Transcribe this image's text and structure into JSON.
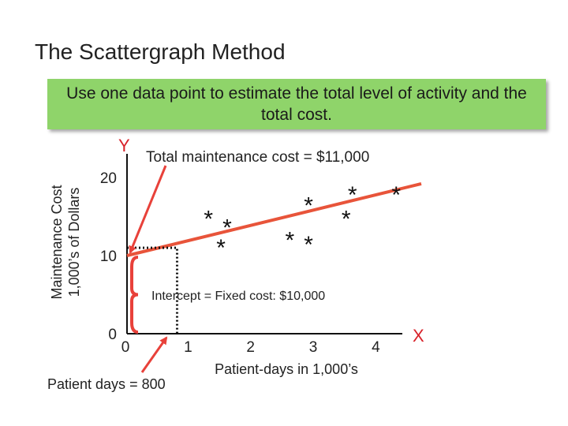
{
  "slide": {
    "title": "The Scattergraph Method",
    "callout": "Use one data point to estimate the total level of activity and the total cost."
  },
  "annotations": {
    "total_cost": "Total maintenance cost = $11,000",
    "intercept": "Intercept = Fixed cost: $10,000",
    "patient_days": "Patient days = 800"
  },
  "colors": {
    "callout_bg": "#8fd46a",
    "line": "#e8543a",
    "arrow": "#e8413a",
    "axis_letters": "#d8222a"
  },
  "chart_data": {
    "type": "scatter",
    "x_axis_letter": "X",
    "y_axis_letter": "Y",
    "xlabel": "Patient-days in 1,000’s",
    "ylabel": [
      "Maintenance Cost",
      "1,000’s of Dollars"
    ],
    "xlim": [
      0,
      4.65
    ],
    "ylim": [
      0,
      20
    ],
    "x_ticks": [
      {
        "value": 0,
        "label": "0"
      },
      {
        "value": 1,
        "label": "1"
      },
      {
        "value": 2,
        "label": "2"
      },
      {
        "value": 3,
        "label": "3"
      },
      {
        "value": 4,
        "label": "4"
      }
    ],
    "y_ticks": [
      {
        "value": 0,
        "label": "0"
      },
      {
        "value": 10,
        "label": "10"
      },
      {
        "value": 20,
        "label": "20"
      }
    ],
    "marker": "*",
    "points": [
      {
        "x": 1.3,
        "y": 15.3
      },
      {
        "x": 1.6,
        "y": 14.2
      },
      {
        "x": 1.5,
        "y": 11.6
      },
      {
        "x": 2.9,
        "y": 17.0
      },
      {
        "x": 2.6,
        "y": 12.6
      },
      {
        "x": 2.9,
        "y": 12.0
      },
      {
        "x": 3.6,
        "y": 18.4
      },
      {
        "x": 3.5,
        "y": 15.3
      },
      {
        "x": 4.3,
        "y": 18.4
      }
    ],
    "fit_line": {
      "x": [
        0,
        4.7
      ],
      "y": [
        10,
        19.2
      ]
    },
    "reference_point": {
      "x": 0.8,
      "y": 11
    }
  }
}
